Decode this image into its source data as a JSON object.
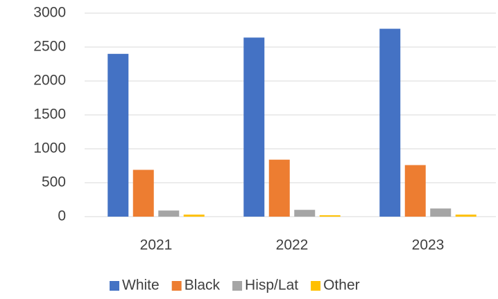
{
  "chart_data": {
    "type": "bar",
    "categories": [
      "2021",
      "2022",
      "2023"
    ],
    "series": [
      {
        "name": "White",
        "color": "#4472c4",
        "values": [
          2400,
          2640,
          2770
        ]
      },
      {
        "name": "Black",
        "color": "#ed7d31",
        "values": [
          690,
          840,
          760
        ]
      },
      {
        "name": "Hisp/Lat",
        "color": "#a5a5a5",
        "values": [
          90,
          100,
          120
        ]
      },
      {
        "name": "Other",
        "color": "#ffc000",
        "values": [
          30,
          20,
          30
        ]
      }
    ],
    "ylim": [
      0,
      3000
    ],
    "yticks": [
      0,
      500,
      1000,
      1500,
      2000,
      2500,
      3000
    ],
    "grid": true,
    "legend": "bottom"
  }
}
